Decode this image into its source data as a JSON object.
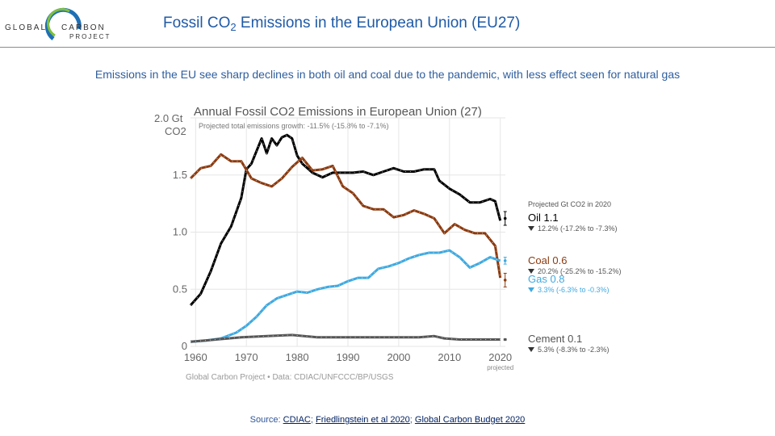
{
  "logo": {
    "word1": "GLOBAL",
    "word2": "CARBON",
    "word3": "PROJECT"
  },
  "slide_title": {
    "pre": "Fossil CO",
    "sub": "2",
    "post": " Emissions in the European Union (EU27)"
  },
  "subtitle": "Emissions in the EU see sharp declines in both oil and coal due to the pandemic, with less effect seen for natural gas",
  "source": {
    "prefix": "Source: ",
    "link1": "CDIAC",
    "sep1": "; ",
    "link2": "Friedlingstein et al 2020",
    "sep2": "; ",
    "link3": "Global Carbon Budget 2020"
  },
  "colors": {
    "oil": "#000000",
    "coal": "#8b3a0f",
    "gas": "#3fa9e0",
    "cement": "#555555",
    "title_blue": "#1f5aa6",
    "subtitle_blue": "#2e5e9e"
  },
  "chart_data": {
    "type": "line",
    "title": "Annual Fossil CO2 Emissions in European Union (27)",
    "subtitle": "Projected total emissions growth: -11.5% (-15.8% to -7.1%)",
    "ylabel_line1": "2.0 Gt",
    "ylabel_line2": "CO2",
    "yticks": [
      "0",
      "0.5",
      "1.0",
      "1.5"
    ],
    "xticks": [
      "1960",
      "1970",
      "1980",
      "1990",
      "2000",
      "2010",
      "2020"
    ],
    "xtick_extra": "projected",
    "xlim": [
      1959,
      2021
    ],
    "ylim": [
      0,
      2.0
    ],
    "grid": true,
    "credit": "Global Carbon Project • Data: CDIAC/UNFCCC/BP/USGS",
    "legend_heading": "Projected Gt CO2 in 2020",
    "series": [
      {
        "name": "Oil",
        "value_label": "1.1",
        "change": "12.2% (-17.2% to -7.3%)",
        "projection": [
          1.12,
          1.06,
          1.18
        ],
        "x": [
          1959,
          1961,
          1963,
          1965,
          1967,
          1969,
          1970,
          1971,
          1973,
          1974,
          1975,
          1976,
          1977,
          1978,
          1979,
          1980,
          1981,
          1983,
          1985,
          1987,
          1989,
          1991,
          1993,
          1995,
          1997,
          1999,
          2001,
          2003,
          2005,
          2007,
          2008,
          2010,
          2012,
          2014,
          2016,
          2018,
          2019,
          2020
        ],
        "values": [
          0.36,
          0.46,
          0.66,
          0.9,
          1.05,
          1.3,
          1.55,
          1.6,
          1.82,
          1.69,
          1.82,
          1.76,
          1.83,
          1.85,
          1.82,
          1.67,
          1.6,
          1.52,
          1.48,
          1.52,
          1.52,
          1.52,
          1.53,
          1.5,
          1.53,
          1.56,
          1.53,
          1.53,
          1.55,
          1.55,
          1.45,
          1.38,
          1.33,
          1.26,
          1.26,
          1.29,
          1.27,
          1.1
        ]
      },
      {
        "name": "Coal",
        "value_label": "0.6",
        "change": "20.2% (-25.2% to -15.2%)",
        "projection": [
          0.58,
          0.52,
          0.64
        ],
        "x": [
          1959,
          1961,
          1963,
          1965,
          1967,
          1969,
          1971,
          1973,
          1975,
          1977,
          1979,
          1981,
          1983,
          1985,
          1987,
          1989,
          1991,
          1993,
          1995,
          1997,
          1999,
          2001,
          2003,
          2005,
          2007,
          2009,
          2011,
          2013,
          2015,
          2017,
          2019,
          2020
        ],
        "values": [
          1.47,
          1.56,
          1.58,
          1.68,
          1.62,
          1.62,
          1.47,
          1.43,
          1.4,
          1.47,
          1.57,
          1.65,
          1.54,
          1.55,
          1.58,
          1.4,
          1.34,
          1.23,
          1.2,
          1.2,
          1.13,
          1.15,
          1.19,
          1.16,
          1.12,
          0.99,
          1.07,
          1.02,
          0.99,
          0.99,
          0.88,
          0.6
        ]
      },
      {
        "name": "Gas",
        "value_label": "0.8",
        "change": "3.3% (-6.3% to -0.3%)",
        "projection": [
          0.75,
          0.72,
          0.78
        ],
        "x": [
          1959,
          1962,
          1965,
          1968,
          1970,
          1972,
          1974,
          1976,
          1978,
          1980,
          1982,
          1984,
          1986,
          1988,
          1990,
          1992,
          1994,
          1996,
          1998,
          2000,
          2002,
          2004,
          2006,
          2008,
          2010,
          2012,
          2014,
          2016,
          2018,
          2020
        ],
        "values": [
          0.04,
          0.05,
          0.07,
          0.12,
          0.18,
          0.26,
          0.36,
          0.42,
          0.45,
          0.48,
          0.47,
          0.5,
          0.52,
          0.53,
          0.57,
          0.6,
          0.6,
          0.68,
          0.7,
          0.73,
          0.77,
          0.8,
          0.82,
          0.82,
          0.84,
          0.78,
          0.69,
          0.73,
          0.78,
          0.75
        ]
      },
      {
        "name": "Cement",
        "value_label": "0.1",
        "change": "5.3% (-8.3% to -2.3%)",
        "projection": [
          0.06,
          0.055,
          0.065
        ],
        "x": [
          1959,
          1964,
          1969,
          1974,
          1979,
          1984,
          1989,
          1994,
          1999,
          2004,
          2007,
          2009,
          2012,
          2016,
          2020
        ],
        "values": [
          0.04,
          0.06,
          0.08,
          0.09,
          0.1,
          0.08,
          0.08,
          0.08,
          0.08,
          0.08,
          0.09,
          0.07,
          0.06,
          0.06,
          0.06
        ]
      }
    ]
  }
}
